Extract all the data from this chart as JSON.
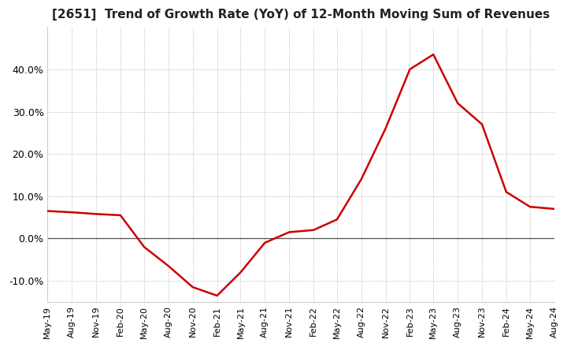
{
  "title": "[2651]  Trend of Growth Rate (YoY) of 12-Month Moving Sum of Revenues",
  "title_fontsize": 11,
  "line_color": "#cc0000",
  "background_color": "#ffffff",
  "plot_bg_color": "#ffffff",
  "grid_color": "#aaaaaa",
  "ylim": [
    -15,
    50
  ],
  "yticks": [
    -10.0,
    0.0,
    10.0,
    20.0,
    30.0,
    40.0
  ],
  "dates": [
    "May-19",
    "Aug-19",
    "Nov-19",
    "Feb-20",
    "May-20",
    "Aug-20",
    "Nov-20",
    "Feb-21",
    "May-21",
    "Aug-21",
    "Nov-21",
    "Feb-22",
    "May-22",
    "Aug-22",
    "Nov-22",
    "Feb-23",
    "May-23",
    "Aug-23",
    "Nov-23",
    "Feb-24",
    "May-24",
    "Aug-24"
  ],
  "values": [
    6.5,
    6.2,
    5.8,
    5.5,
    -2.0,
    -6.5,
    -11.5,
    -13.5,
    -8.0,
    -1.0,
    1.5,
    2.0,
    4.5,
    14.0,
    26.0,
    40.0,
    43.5,
    32.0,
    27.0,
    11.0,
    7.5,
    7.0
  ]
}
